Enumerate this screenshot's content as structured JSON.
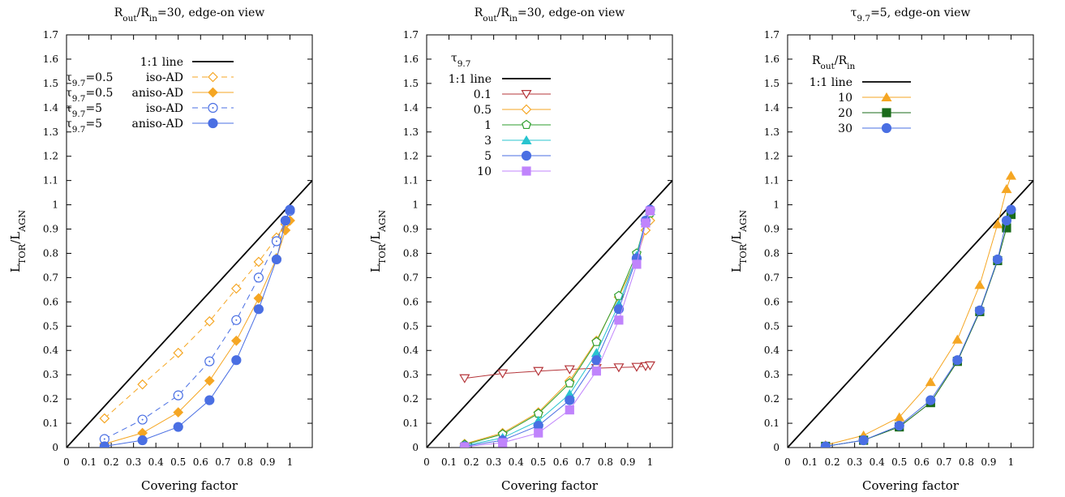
{
  "chart_data": [
    {
      "type": "line",
      "title_parts": [
        "R",
        "out",
        "/R",
        "in",
        "=30, edge-on view"
      ],
      "xlabel": "Covering factor",
      "ylabel_parts": [
        "L",
        "TOR",
        "/L",
        "AGN"
      ],
      "xlim": [
        0,
        1.1
      ],
      "ylim": [
        0,
        1.7
      ],
      "xticks": [
        "0",
        "0.1",
        "0.2",
        "0.3",
        "0.4",
        "0.5",
        "0.6",
        "0.7",
        "0.8",
        "0.9",
        "1"
      ],
      "yticks": [
        "0",
        "0.1",
        "0.2",
        "0.3",
        "0.4",
        "0.5",
        "0.6",
        "0.7",
        "0.8",
        "0.9",
        "1",
        "1.1",
        "1.2",
        "1.3",
        "1.4",
        "1.5",
        "1.6",
        "1.7"
      ],
      "legend_position": "top-right",
      "reference_line": {
        "label": "1:1 line",
        "color": "#000000"
      },
      "series": [
        {
          "name": "iso-AD",
          "prefix": "τ",
          "sub": "9.7",
          "pval": "=0.5",
          "color": "#f5a623",
          "marker": "diamond-open",
          "dash": true,
          "x": [
            0.17,
            0.34,
            0.5,
            0.64,
            0.76,
            0.86,
            0.94,
            0.98,
            1.0
          ],
          "y": [
            0.12,
            0.26,
            0.39,
            0.52,
            0.655,
            0.765,
            0.865,
            0.92,
            0.935
          ]
        },
        {
          "name": "aniso-AD",
          "prefix": "τ",
          "sub": "9.7",
          "pval": "=0.5",
          "color": "#f5a623",
          "marker": "diamond-filled",
          "dash": false,
          "x": [
            0.17,
            0.34,
            0.5,
            0.64,
            0.76,
            0.86,
            0.94,
            0.98,
            1.0
          ],
          "y": [
            0.015,
            0.06,
            0.145,
            0.275,
            0.44,
            0.615,
            0.78,
            0.895,
            0.935
          ]
        },
        {
          "name": "iso-AD",
          "prefix": "τ",
          "sub": "9.7",
          "pval": "=5",
          "color": "#4a6fe3",
          "marker": "circle-dot",
          "dash": true,
          "x": [
            0.17,
            0.34,
            0.5,
            0.64,
            0.76,
            0.86,
            0.94,
            0.98,
            1.0
          ],
          "y": [
            0.035,
            0.115,
            0.215,
            0.355,
            0.525,
            0.7,
            0.85,
            0.935,
            0.975
          ]
        },
        {
          "name": "aniso-AD",
          "prefix": "τ",
          "sub": "9.7",
          "pval": "=5",
          "color": "#4a6fe3",
          "marker": "circle-filled",
          "dash": false,
          "x": [
            0.17,
            0.34,
            0.5,
            0.64,
            0.76,
            0.86,
            0.94,
            0.98,
            1.0
          ],
          "y": [
            0.005,
            0.03,
            0.085,
            0.195,
            0.36,
            0.57,
            0.775,
            0.935,
            0.98
          ]
        }
      ]
    },
    {
      "type": "line",
      "title_parts": [
        "R",
        "out",
        "/R",
        "in",
        "=30, edge-on view"
      ],
      "xlabel": "Covering factor",
      "ylabel_parts": [
        "L",
        "TOR",
        "/L",
        "AGN"
      ],
      "xlim": [
        0,
        1.1
      ],
      "ylim": [
        0,
        1.7
      ],
      "xticks": [
        "0",
        "0.1",
        "0.2",
        "0.3",
        "0.4",
        "0.5",
        "0.6",
        "0.7",
        "0.8",
        "0.9",
        "1"
      ],
      "yticks": [
        "0",
        "0.1",
        "0.2",
        "0.3",
        "0.4",
        "0.5",
        "0.6",
        "0.7",
        "0.8",
        "0.9",
        "1",
        "1.1",
        "1.2",
        "1.3",
        "1.4",
        "1.5",
        "1.6",
        "1.7"
      ],
      "legend_position": "top-left",
      "legend_title_parts": [
        "τ",
        "9.7"
      ],
      "reference_line": {
        "label": "1:1 line",
        "color": "#000000"
      },
      "series": [
        {
          "name": "0.1",
          "color": "#b5353a",
          "marker": "triangle-down-open",
          "x": [
            0.17,
            0.34,
            0.5,
            0.64,
            0.76,
            0.86,
            0.94,
            0.98,
            1.0
          ],
          "y": [
            0.285,
            0.305,
            0.315,
            0.322,
            0.327,
            0.33,
            0.332,
            0.335,
            0.338
          ]
        },
        {
          "name": "0.5",
          "color": "#f5a623",
          "marker": "diamond-open",
          "x": [
            0.17,
            0.34,
            0.5,
            0.64,
            0.76,
            0.86,
            0.94,
            0.98,
            1.0
          ],
          "y": [
            0.015,
            0.06,
            0.145,
            0.275,
            0.44,
            0.62,
            0.78,
            0.895,
            0.935
          ]
        },
        {
          "name": "1",
          "color": "#2e9e2e",
          "marker": "pentagon-open",
          "x": [
            0.17,
            0.34,
            0.5,
            0.64,
            0.76,
            0.86,
            0.94,
            0.98,
            1.0
          ],
          "y": [
            0.012,
            0.055,
            0.14,
            0.265,
            0.435,
            0.625,
            0.8,
            0.93,
            0.965
          ]
        },
        {
          "name": "3",
          "color": "#28c4cf",
          "marker": "triangle-filled",
          "x": [
            0.17,
            0.34,
            0.5,
            0.64,
            0.76,
            0.86,
            0.94,
            0.98,
            1.0
          ],
          "y": [
            0.008,
            0.04,
            0.11,
            0.22,
            0.39,
            0.59,
            0.79,
            0.935,
            0.975
          ]
        },
        {
          "name": "5",
          "color": "#4a6fe3",
          "marker": "circle-filled",
          "x": [
            0.17,
            0.34,
            0.5,
            0.64,
            0.76,
            0.86,
            0.94,
            0.98,
            1.0
          ],
          "y": [
            0.005,
            0.03,
            0.09,
            0.195,
            0.36,
            0.57,
            0.78,
            0.935,
            0.98
          ]
        },
        {
          "name": "10",
          "color": "#c084fc",
          "marker": "square-filled",
          "x": [
            0.17,
            0.34,
            0.5,
            0.64,
            0.76,
            0.86,
            0.94,
            0.98,
            1.0
          ],
          "y": [
            0.003,
            0.02,
            0.06,
            0.155,
            0.315,
            0.525,
            0.755,
            0.925,
            0.975
          ]
        }
      ]
    },
    {
      "type": "line",
      "title_parts": [
        "τ",
        "9.7",
        "=5, edge-on view"
      ],
      "xlabel": "Covering factor",
      "ylabel_parts": [
        "L",
        "TOR",
        "/L",
        "AGN"
      ],
      "xlim": [
        0,
        1.1
      ],
      "ylim": [
        0,
        1.7
      ],
      "xticks": [
        "0",
        "0.1",
        "0.2",
        "0.3",
        "0.4",
        "0.5",
        "0.6",
        "0.7",
        "0.8",
        "0.9",
        "1"
      ],
      "yticks": [
        "0",
        "0.1",
        "0.2",
        "0.3",
        "0.4",
        "0.5",
        "0.6",
        "0.7",
        "0.8",
        "0.9",
        "1",
        "1.1",
        "1.2",
        "1.3",
        "1.4",
        "1.5",
        "1.6",
        "1.7"
      ],
      "legend_position": "top-left",
      "legend_title_parts": [
        "R",
        "out",
        "/R",
        "in"
      ],
      "reference_line": {
        "label": "1:1 line",
        "color": "#000000"
      },
      "series": [
        {
          "name": "10",
          "color": "#f5a623",
          "marker": "triangle-filled",
          "x": [
            0.17,
            0.34,
            0.5,
            0.64,
            0.76,
            0.86,
            0.94,
            0.98,
            1.0
          ],
          "y": [
            0.01,
            0.05,
            0.125,
            0.27,
            0.445,
            0.67,
            0.92,
            1.065,
            1.12
          ]
        },
        {
          "name": "20",
          "color": "#1a6b1a",
          "marker": "square-filled",
          "x": [
            0.17,
            0.34,
            0.5,
            0.64,
            0.76,
            0.86,
            0.94,
            0.98,
            1.0
          ],
          "y": [
            0.005,
            0.03,
            0.085,
            0.185,
            0.355,
            0.56,
            0.77,
            0.905,
            0.96
          ]
        },
        {
          "name": "30",
          "color": "#4a6fe3",
          "marker": "circle-filled",
          "x": [
            0.17,
            0.34,
            0.5,
            0.64,
            0.76,
            0.86,
            0.94,
            0.98,
            1.0
          ],
          "y": [
            0.005,
            0.03,
            0.09,
            0.195,
            0.36,
            0.565,
            0.775,
            0.935,
            0.98
          ]
        }
      ]
    }
  ]
}
